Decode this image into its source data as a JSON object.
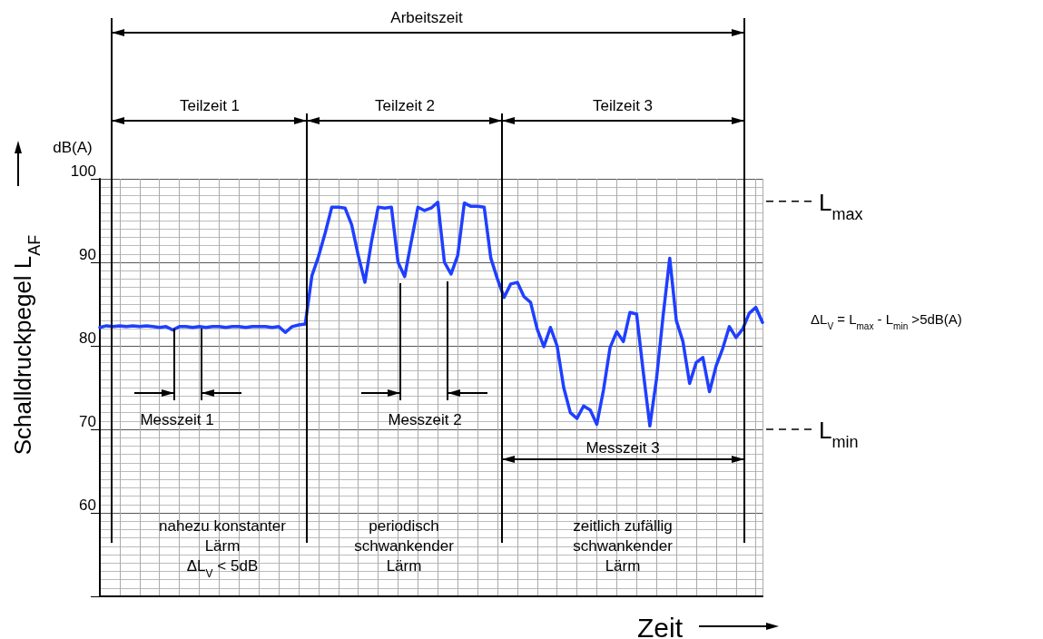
{
  "chart_data": {
    "type": "line",
    "ylabel": "Schalldruckpegel L$_{AF}$",
    "xlabel": "Zeit",
    "categories": [
      null,
      null,
      null,
      null,
      null,
      null,
      null,
      null,
      null,
      null,
      null,
      null,
      null,
      null,
      null,
      null,
      null,
      null,
      null,
      null,
      null,
      null,
      null,
      null,
      null,
      null,
      null,
      null,
      null,
      null,
      null,
      null,
      null,
      null,
      null,
      null,
      null,
      null,
      null,
      null,
      null,
      null,
      null,
      null,
      null,
      null,
      null,
      null,
      null,
      null,
      null,
      null,
      null,
      null,
      null,
      null,
      null,
      null,
      null,
      null,
      null,
      null,
      null,
      null,
      null,
      null,
      null,
      null,
      null,
      null,
      null,
      null,
      null,
      null,
      null,
      null,
      null,
      null,
      null,
      null,
      null,
      null,
      null,
      null,
      null,
      null,
      null,
      null,
      null,
      null,
      null,
      null,
      null,
      null,
      null,
      null,
      null,
      null,
      null,
      null,
      null
    ],
    "series": [
      {
        "color": "#1f3fff",
        "values": [
          82.2,
          82.4,
          82.3,
          82.4,
          82.3,
          82.4,
          82.3,
          82.4,
          82.3,
          82.2,
          82.3,
          81.9,
          82.3,
          82.3,
          82.2,
          82.3,
          82.2,
          82.3,
          82.3,
          82.2,
          82.3,
          82.3,
          82.2,
          82.3,
          82.3,
          82.3,
          82.2,
          82.3,
          81.6,
          82.3,
          82.5,
          82.6,
          88.4,
          90.7,
          93.5,
          96.6,
          96.6,
          96.5,
          94.5,
          90.8,
          87.6,
          92.5,
          96.6,
          96.5,
          96.6,
          90,
          88.3,
          92.5,
          96.6,
          96.2,
          96.5,
          97.2,
          90,
          88.6,
          90.8,
          97.1,
          96.7,
          96.7,
          96.6,
          90.5,
          88,
          85.8,
          87.4,
          87.6,
          85.9,
          85.2,
          82,
          79.9,
          82.2,
          80,
          75,
          72,
          71.3,
          72.8,
          72.3,
          70.6,
          74.7,
          79.8,
          81.7,
          80.5,
          84,
          83.8,
          76.9,
          70.4,
          76,
          83.6,
          90.5,
          83,
          80.5,
          75.5,
          78,
          78.6,
          74.5,
          77.6,
          79.7,
          82.3,
          81,
          82,
          83.9,
          84.6,
          82.8
        ]
      }
    ],
    "ylim": [
      50,
      100
    ],
    "yticks": [
      {
        "value": 50,
        "label": null
      },
      60,
      70,
      80,
      90,
      100
    ],
    "grid": true,
    "tick_labels": "y",
    "line_style": "solid",
    "ref_lines": [
      {
        "axis": "y",
        "value": 97.3,
        "label": "L$_{max}$",
        "line_style": "dashed"
      },
      {
        "axis": "y",
        "value": 70,
        "label": "L$_{min}$",
        "line_style": "dashed"
      }
    ],
    "annotations": [
      "dB(A)",
      "Arbeitszeit",
      "Teilzeit 1",
      "Teilzeit 2",
      "Teilzeit 3",
      "Messzeit 1",
      "Messzeit 2",
      "Messzeit 3",
      "nahezu konstanter\nLärm\nΔL$_{V}$ < 5dB",
      "periodisch\nschwankender\nLärm",
      "zeitlich zufällig\nschwankender\nLärm",
      "ΔL$_{V}$ = L$_{max}$ - L$_{min}$ >5dB(A)"
    ]
  }
}
